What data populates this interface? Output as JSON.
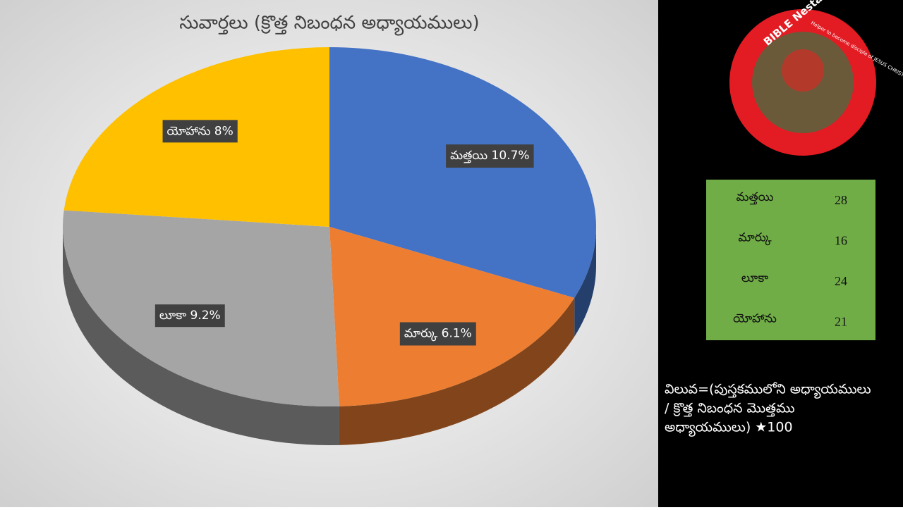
{
  "chart_data": {
    "type": "pie",
    "title": "సువార్తలు (క్రొత్త నిబంధన అధ్యాయములు)",
    "categories": [
      "మత్తయి",
      "మార్కు",
      "లూకా",
      "యోహాను"
    ],
    "values": [
      10.7,
      6.1,
      9.2,
      8
    ],
    "value_labels": [
      "మత్తయి 10.7%",
      "మార్కు 6.1%",
      "లూకా 9.2%",
      "యోహాను 8%"
    ],
    "colors": [
      "#4472c4",
      "#ed7d31",
      "#a5a5a5",
      "#ffc000"
    ]
  },
  "logo": {
    "title": "BIBLE Nestam",
    "tagline": "Helper to become disciple of JESUS CHRIST"
  },
  "table": {
    "rows": [
      [
        "మత్తయి",
        "28"
      ],
      [
        "మార్కు",
        "16"
      ],
      [
        "లూకా",
        "24"
      ],
      [
        "యోహాను",
        "21"
      ]
    ]
  },
  "formula": [
    "విలువ=(పుస్తకములోని అధ్యాయములు",
    "/ క్రొత్త నిబంధన మొత్తము",
    "అధ్యాయములు) ★100"
  ]
}
